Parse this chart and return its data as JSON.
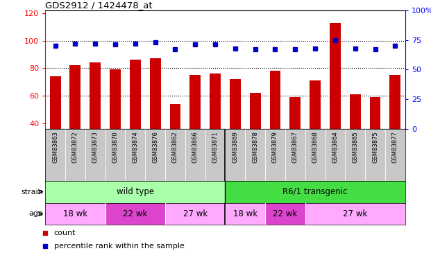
{
  "title": "GDS2912 / 1424478_at",
  "samples": [
    "GSM83863",
    "GSM83872",
    "GSM83873",
    "GSM83870",
    "GSM83874",
    "GSM83876",
    "GSM83862",
    "GSM83866",
    "GSM83871",
    "GSM83869",
    "GSM83878",
    "GSM83879",
    "GSM83867",
    "GSM83868",
    "GSM83864",
    "GSM83865",
    "GSM83875",
    "GSM83877"
  ],
  "counts": [
    74,
    82,
    84,
    79,
    86,
    87,
    54,
    75,
    76,
    72,
    62,
    78,
    59,
    71,
    113,
    61,
    59,
    75
  ],
  "percentiles": [
    70,
    72,
    72,
    71,
    72,
    73,
    67,
    71,
    71,
    68,
    67,
    67,
    67,
    68,
    75,
    68,
    67,
    70
  ],
  "strain_groups": [
    {
      "label": "wild type",
      "start": 0,
      "end": 9,
      "color": "#AAFFAA"
    },
    {
      "label": "R6/1 transgenic",
      "start": 9,
      "end": 18,
      "color": "#44DD44"
    }
  ],
  "age_groups": [
    {
      "label": "18 wk",
      "start": 0,
      "end": 3,
      "color": "#FFAAFF"
    },
    {
      "label": "22 wk",
      "start": 3,
      "end": 6,
      "color": "#EE44EE"
    },
    {
      "label": "27 wk",
      "start": 6,
      "end": 9,
      "color": "#FFAAFF"
    },
    {
      "label": "18 wk",
      "start": 9,
      "end": 11,
      "color": "#FFAAFF"
    },
    {
      "label": "22 wk",
      "start": 11,
      "end": 13,
      "color": "#EE44EE"
    },
    {
      "label": "27 wk",
      "start": 13,
      "end": 18,
      "color": "#FFAAFF"
    }
  ],
  "ylim_left": [
    36,
    122
  ],
  "ylim_right": [
    0,
    100
  ],
  "yticks_left": [
    40,
    60,
    80,
    100,
    120
  ],
  "yticks_right": [
    0,
    25,
    50,
    75,
    100
  ],
  "ytick_right_labels": [
    "0",
    "25",
    "50",
    "75",
    "100%"
  ],
  "bar_color": "#CC0000",
  "dot_color": "#0000CC",
  "sample_bg_color": "#C8C8C8",
  "plot_bg": "#FFFFFF",
  "grid_lines": [
    60,
    80,
    100
  ]
}
